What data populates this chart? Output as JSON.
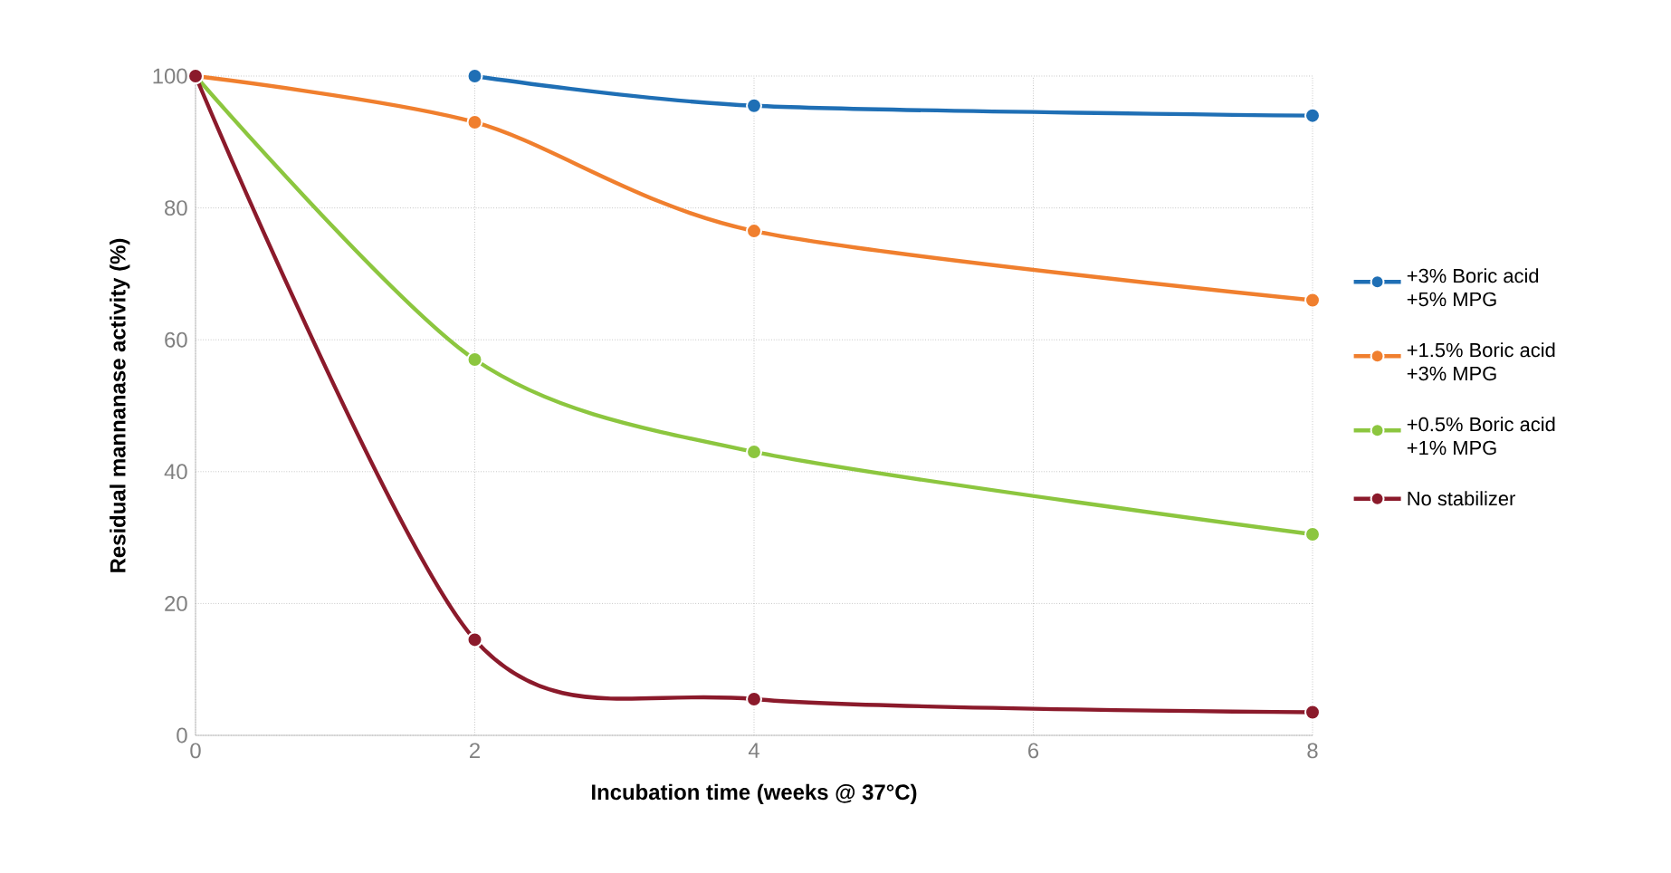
{
  "chart_data": {
    "type": "line",
    "xlabel": "Incubation time (weeks @ 37°C)",
    "ylabel": "Residual mannanase activity (%)",
    "x": [
      0,
      2,
      4,
      8
    ],
    "series": [
      {
        "name": "+3% Boric acid +5% MPG",
        "color": "#1f6fb5",
        "values": [
          null,
          100,
          95.5,
          94
        ]
      },
      {
        "name": "+1.5% Boric acid +3% MPG",
        "color": "#f07f2e",
        "values": [
          100,
          93,
          76.5,
          66
        ]
      },
      {
        "name": "+0.5% Boric acid +1% MPG",
        "color": "#8cc63f",
        "values": [
          100,
          57,
          43,
          30.5
        ]
      },
      {
        "name": "No stabilizer",
        "color": "#8b1a2b",
        "values": [
          100,
          14.5,
          5.5,
          3.5
        ]
      }
    ],
    "xlim": [
      0,
      8
    ],
    "xticks": [
      0,
      2,
      4,
      6,
      8
    ],
    "ylim": [
      0,
      100
    ],
    "yticks": [
      0,
      20,
      40,
      60,
      80,
      100
    ],
    "grid": true,
    "legend": "right",
    "marker": "circle",
    "line_style": "solid"
  }
}
